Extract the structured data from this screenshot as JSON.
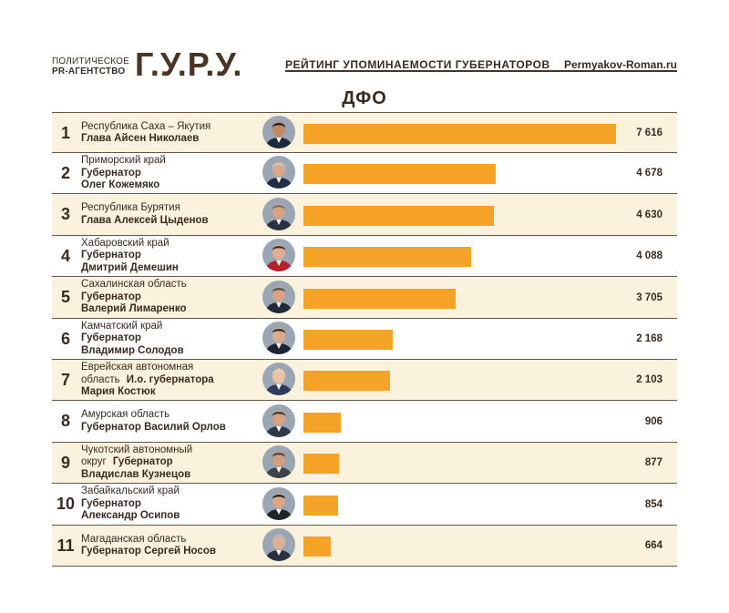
{
  "header": {
    "agency_line1": "ПОЛИТИЧЕСКОЕ",
    "agency_line2": "PR-АГЕНТСТВО",
    "brand": "Г.У.Р.У.",
    "rating_title": "РЕЙТИНГ УПОМИНАЕМОСТИ ГУБЕРНАТОРОВ",
    "site": "Permyakov-Roman.ru"
  },
  "region_title": "ДФО",
  "colors": {
    "bar": "#f4a326",
    "shaded_row": "#fbf2dd",
    "text": "#3b2a1f",
    "rule": "#6b5646"
  },
  "chart_data": {
    "type": "bar",
    "orientation": "horizontal",
    "title": "ДФО",
    "xlim": [
      0,
      7616
    ],
    "grid": false,
    "rows": [
      {
        "rank": "1",
        "region_text": "Республика Саха – Якутия",
        "name_lines": [
          "Глава Айсен Николаев"
        ],
        "value": 7616,
        "value_label": "7 616",
        "shaded": true,
        "skin": "#c08a63",
        "hair": "#1d1b1b",
        "suit": "#1f2a3a"
      },
      {
        "rank": "2",
        "region_text": "Приморский край",
        "name_lines": [
          "Губернатор",
          "Олег Кожемяко"
        ],
        "value": 4678,
        "value_label": "4 678",
        "shaded": false,
        "skin": "#d9a88a",
        "hair": "#c9c9c9",
        "suit": "#1e2c4a"
      },
      {
        "rank": "3",
        "region_text": "Республика Бурятия",
        "name_lines": [
          "Глава Алексей Цыденов"
        ],
        "value": 4630,
        "value_label": "4 630",
        "shaded": true,
        "skin": "#d5a384",
        "hair": "#6c6c6c",
        "suit": "#2b3142"
      },
      {
        "rank": "4",
        "region_text": "Хабаровский край",
        "name_lines": [
          "Губернатор",
          "Дмитрий Демешин"
        ],
        "value": 4088,
        "value_label": "4 088",
        "shaded": false,
        "skin": "#e0ae92",
        "hair": "#3a2a22",
        "suit": "#b7202a"
      },
      {
        "rank": "5",
        "region_text": "Сахалинская область",
        "name_lines": [
          "Губернатор",
          "Валерий Лимаренко"
        ],
        "value": 3705,
        "value_label": "3 705",
        "shaded": true,
        "skin": "#d9a283",
        "hair": "#4a4a4a",
        "suit": "#222a38"
      },
      {
        "rank": "6",
        "region_text": "Камчатский край",
        "name_lines": [
          "Губернатор",
          "Владимир Солодов"
        ],
        "value": 2168,
        "value_label": "2 168",
        "shaded": false,
        "skin": "#dcab8e",
        "hair": "#2e241e",
        "suit": "#1d2433"
      },
      {
        "rank": "7",
        "region_text": "Еврейская автономная",
        "region_text2": "область",
        "name_prefix": "И.о. губернатора",
        "name_lines": [
          "Мария Костюк"
        ],
        "value": 2103,
        "value_label": "2 103",
        "shaded": true,
        "skin": "#e8c1a7",
        "hair": "#e6d7b0",
        "suit": "#2d3a5c"
      },
      {
        "rank": "8",
        "region_text": "Амурская область",
        "name_lines": [
          "Губернатор Василий Орлов"
        ],
        "value": 906,
        "value_label": "906",
        "shaded": false,
        "skin": "#d7a486",
        "hair": "#3a3028",
        "suit": "#30384a"
      },
      {
        "rank": "9",
        "region_text": "Чукотский автономный",
        "region_text2": "округ",
        "name_prefix": "Губернатор",
        "name_lines": [
          "Владислав Кузнецов"
        ],
        "value": 877,
        "value_label": "877",
        "shaded": true,
        "skin": "#d29f82",
        "hair": "#4c3a2c",
        "suit": "#3d4148"
      },
      {
        "rank": "10",
        "region_text": "Забайкальский край",
        "name_lines": [
          "Губернатор",
          "Александр Осипов"
        ],
        "value": 854,
        "value_label": "854",
        "shaded": false,
        "skin": "#d8a687",
        "hair": "#1f1a17",
        "suit": "#20242c"
      },
      {
        "rank": "11",
        "region_text": "Магаданская область",
        "name_lines": [
          "Губернатор Сергей Носов"
        ],
        "value": 664,
        "value_label": "664",
        "shaded": true,
        "skin": "#dcb096",
        "hair": "#b8b8b8",
        "suit": "#2a3040"
      }
    ]
  }
}
